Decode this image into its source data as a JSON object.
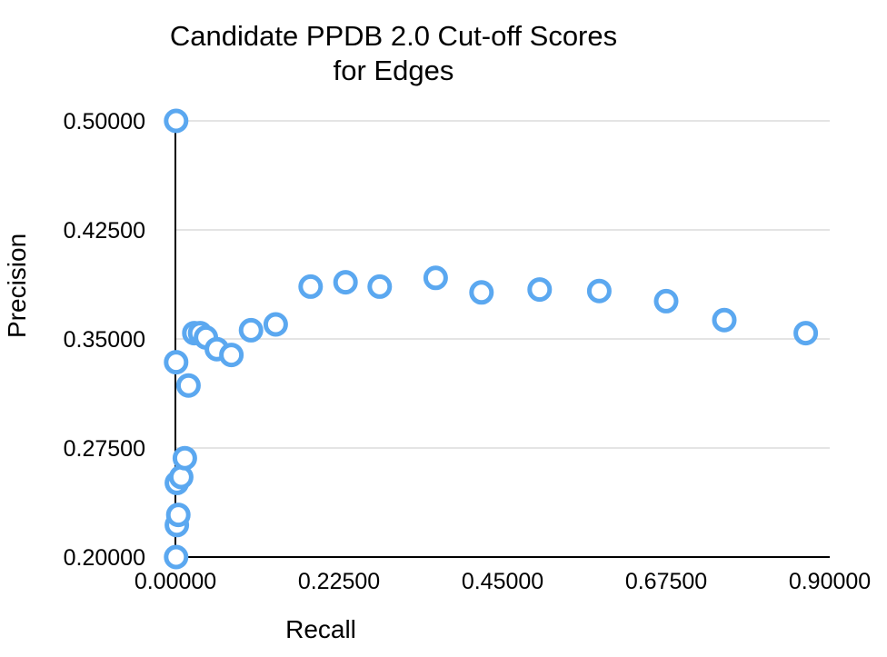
{
  "chart_data": {
    "type": "scatter",
    "title": [
      "Candidate PPDB 2.0 Cut-off Scores",
      "for Edges"
    ],
    "xlabel": "Recall",
    "ylabel": "Precision",
    "xlim": [
      0,
      0.9
    ],
    "ylim": [
      0.2,
      0.5
    ],
    "x_ticks": [
      "0.00000",
      "0.22500",
      "0.45000",
      "0.67500",
      "0.90000"
    ],
    "y_ticks": [
      "0.20000",
      "0.27500",
      "0.35000",
      "0.42500",
      "0.50000"
    ],
    "grid": "horizontal",
    "marker_color": "#5ba8f0",
    "points": [
      {
        "x": 0.001,
        "y": 0.5
      },
      {
        "x": 0.001,
        "y": 0.334
      },
      {
        "x": 0.001,
        "y": 0.2
      },
      {
        "x": 0.002,
        "y": 0.222
      },
      {
        "x": 0.004,
        "y": 0.229
      },
      {
        "x": 0.002,
        "y": 0.251
      },
      {
        "x": 0.008,
        "y": 0.255
      },
      {
        "x": 0.013,
        "y": 0.268
      },
      {
        "x": 0.018,
        "y": 0.318
      },
      {
        "x": 0.026,
        "y": 0.354
      },
      {
        "x": 0.034,
        "y": 0.354
      },
      {
        "x": 0.042,
        "y": 0.351
      },
      {
        "x": 0.057,
        "y": 0.343
      },
      {
        "x": 0.077,
        "y": 0.339
      },
      {
        "x": 0.104,
        "y": 0.356
      },
      {
        "x": 0.138,
        "y": 0.36
      },
      {
        "x": 0.186,
        "y": 0.386
      },
      {
        "x": 0.234,
        "y": 0.389
      },
      {
        "x": 0.281,
        "y": 0.386
      },
      {
        "x": 0.358,
        "y": 0.392
      },
      {
        "x": 0.421,
        "y": 0.382
      },
      {
        "x": 0.501,
        "y": 0.384
      },
      {
        "x": 0.583,
        "y": 0.383
      },
      {
        "x": 0.675,
        "y": 0.376
      },
      {
        "x": 0.755,
        "y": 0.363
      },
      {
        "x": 0.867,
        "y": 0.354
      }
    ]
  }
}
